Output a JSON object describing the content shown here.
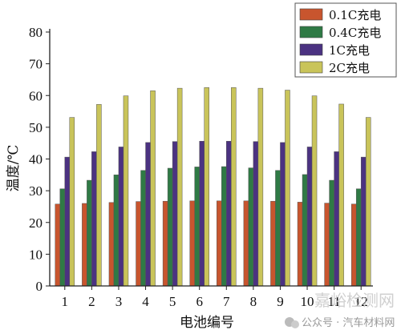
{
  "chart_data": {
    "type": "bar",
    "title": "",
    "xlabel": "电池编号",
    "ylabel": "温度/℃",
    "categories": [
      "1",
      "2",
      "3",
      "4",
      "5",
      "6",
      "7",
      "8",
      "9",
      "10",
      "11",
      "12"
    ],
    "ylim": [
      0,
      80
    ],
    "yticks": [
      0,
      10,
      20,
      30,
      40,
      50,
      60,
      70,
      80
    ],
    "grid": false,
    "legend_position": "top-right",
    "series": [
      {
        "name": "0.1C充电",
        "color": "#c8552e",
        "values": [
          25.8,
          26.0,
          26.3,
          26.6,
          26.7,
          26.8,
          26.8,
          26.8,
          26.7,
          26.4,
          26.1,
          25.8
        ]
      },
      {
        "name": "0.4C充电",
        "color": "#2f7a45",
        "values": [
          30.6,
          33.3,
          35.0,
          36.4,
          37.1,
          37.5,
          37.6,
          37.2,
          36.4,
          35.1,
          33.3,
          30.6
        ]
      },
      {
        "name": "1C充电",
        "color": "#4b3281",
        "values": [
          40.6,
          42.3,
          43.8,
          45.2,
          45.5,
          45.6,
          45.6,
          45.5,
          45.2,
          43.8,
          42.3,
          40.6
        ]
      },
      {
        "name": "2C充电",
        "color": "#c9c45a",
        "values": [
          53.1,
          57.2,
          59.9,
          61.5,
          62.3,
          62.5,
          62.5,
          62.3,
          61.7,
          59.9,
          57.3,
          53.1
        ]
      }
    ]
  },
  "watermark": {
    "logo_text": "嘉峪检测网",
    "caption": "公众号 · 汽车材料网"
  }
}
